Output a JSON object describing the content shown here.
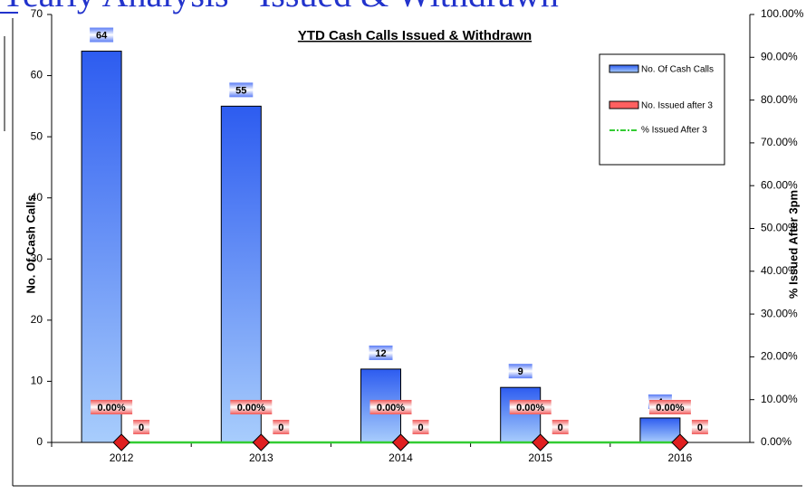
{
  "banner": "Yearly Analysis - Issued & Withdrawn",
  "chart_data": {
    "type": "bar",
    "title": "YTD Cash Calls Issued & Withdrawn",
    "y_label": "No. Of Cash Calls",
    "y2_label": "% Issued After 3pm",
    "categories": [
      "2012",
      "2013",
      "2014",
      "2015",
      "2016"
    ],
    "series": [
      {
        "name": "No. Of Cash Calls",
        "color": "#3366ff",
        "values": [
          64,
          55,
          12,
          9,
          4
        ]
      },
      {
        "name": "No. Issued after 3",
        "color": "#ff5050",
        "values": [
          0,
          0,
          0,
          0,
          0
        ]
      },
      {
        "name": "% Issued After 3",
        "color": "#33cc33",
        "type": "line",
        "axis": "y2",
        "values": [
          0,
          0,
          0,
          0,
          0
        ],
        "value_labels": [
          "0.00%",
          "0.00%",
          "0.00%",
          "0.00%",
          "0.00%"
        ]
      }
    ],
    "ylim": [
      0,
      70
    ],
    "yticks": [
      0,
      10,
      20,
      30,
      40,
      50,
      60,
      70
    ],
    "y2lim": [
      0,
      100
    ],
    "y2ticks": [
      {
        "value": 0,
        "label": "0.00%"
      },
      {
        "value": 10,
        "label": "10.00%"
      },
      {
        "value": 20,
        "label": "20.00%"
      },
      {
        "value": 30,
        "label": "30.00%"
      },
      {
        "value": 40,
        "label": "40.00%"
      },
      {
        "value": 50,
        "label": "50.00%"
      },
      {
        "value": 60,
        "label": "60.00%"
      },
      {
        "value": 70,
        "label": "70.00%"
      },
      {
        "value": 80,
        "label": "80.00%"
      },
      {
        "value": 90,
        "label": "90.00%"
      },
      {
        "value": 100,
        "label": "100.00%"
      }
    ],
    "legend": "upper right"
  }
}
